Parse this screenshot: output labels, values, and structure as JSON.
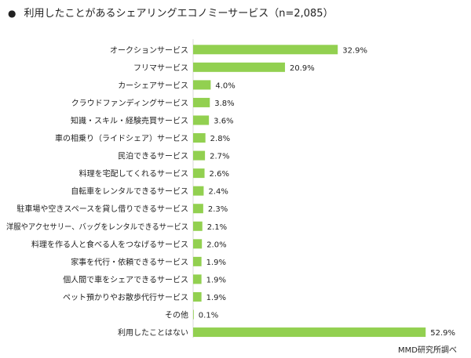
{
  "title": "利用したことがあるシェアリングエコノミーサービス（n=2,085）",
  "bullet": "●",
  "source": "MMD研究所調べ",
  "chart_data": {
    "type": "bar",
    "orientation": "horizontal",
    "title": "利用したことがあるシェアリングエコノミーサービス（n=2,085）",
    "bar_color": "#92d050",
    "xlim": [
      0,
      55
    ],
    "grid": false,
    "legend": "none",
    "categories": [
      "オークションサービス",
      "フリマサービス",
      "カーシェアサービス",
      "クラウドファンディングサービス",
      "知識・スキル・経験売買サービス",
      "車の相乗り（ライドシェア）サービス",
      "民泊できるサービス",
      "料理を宅配してくれるサービス",
      "自転車をレンタルできるサービス",
      "駐車場や空きスペースを貸し借りできるサービス",
      "洋服やアクセサリー、バッグをレンタルできるサービス",
      "料理を作る人と食べる人をつなげるサービス",
      "家事を代行・依頼できるサービス",
      "個人間で車をシェアできるサービス",
      "ペット預かりやお散歩代行サービス",
      "その他",
      "利用したことはない"
    ],
    "values": [
      32.9,
      20.9,
      4.0,
      3.8,
      3.6,
      2.8,
      2.7,
      2.6,
      2.4,
      2.3,
      2.1,
      2.0,
      1.9,
      1.9,
      1.9,
      0.1,
      52.9
    ],
    "value_labels": [
      "32.9%",
      "20.9%",
      "4.0%",
      "3.8%",
      "3.6%",
      "2.8%",
      "2.7%",
      "2.6%",
      "2.4%",
      "2.3%",
      "2.1%",
      "2.0%",
      "1.9%",
      "1.9%",
      "1.9%",
      "0.1%",
      "52.9%"
    ]
  }
}
